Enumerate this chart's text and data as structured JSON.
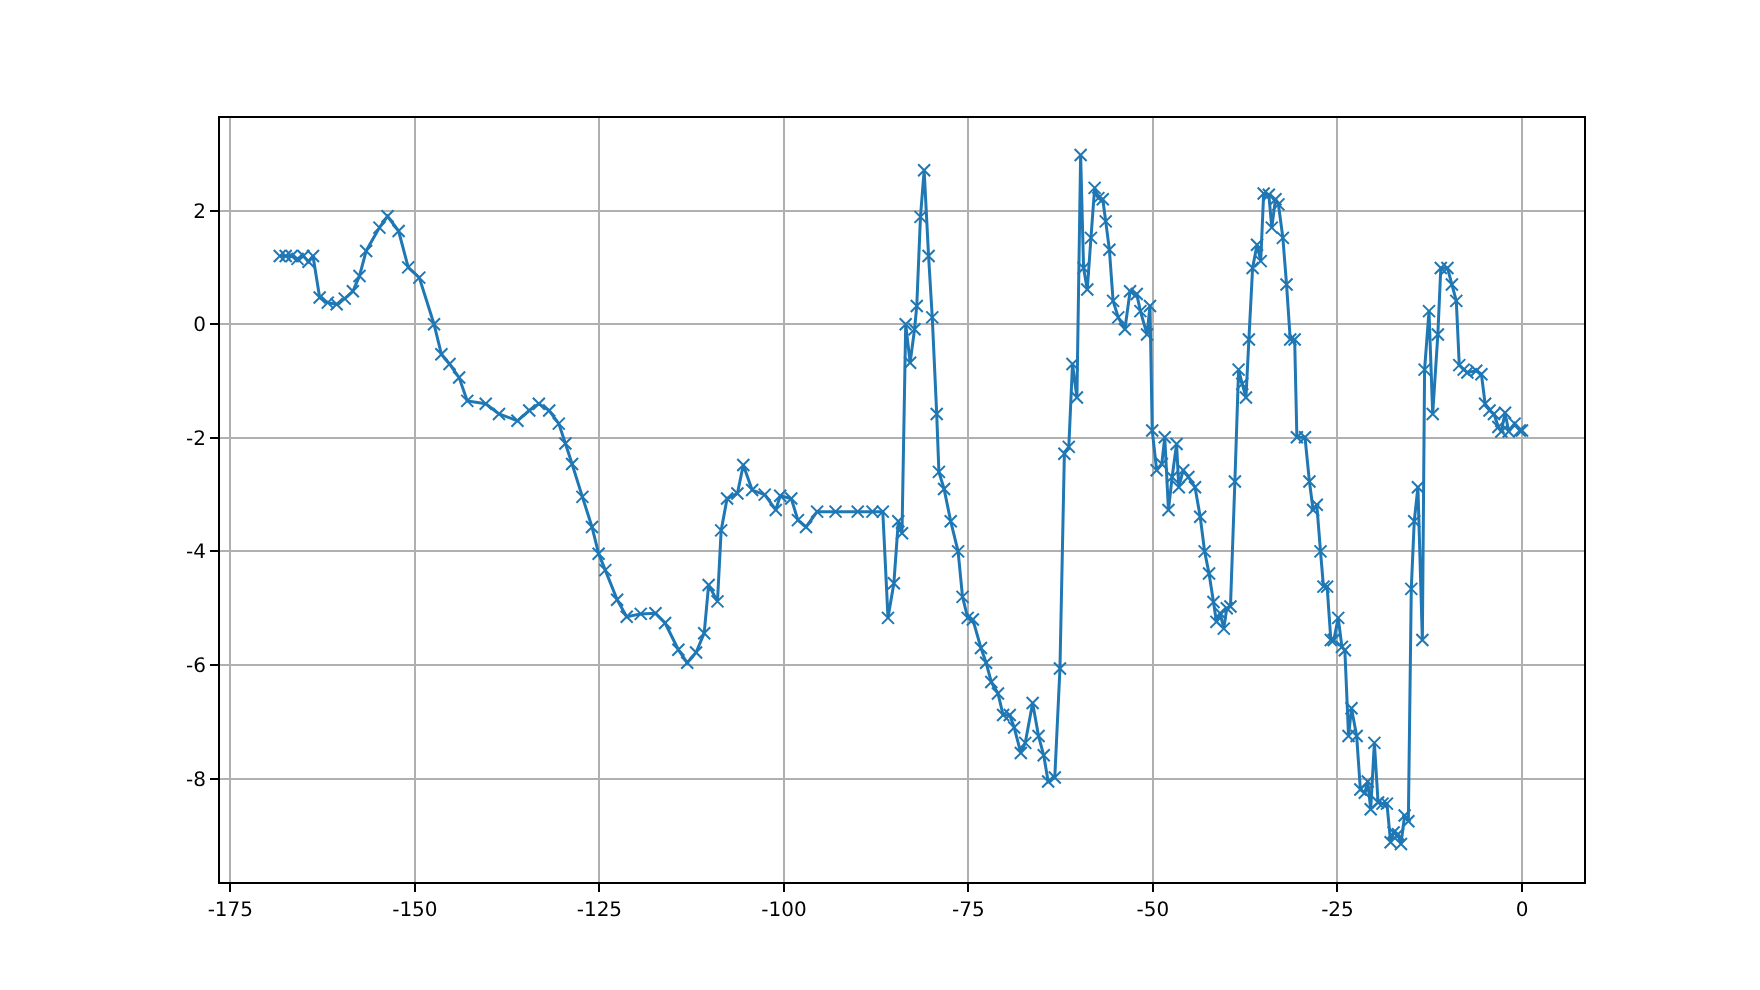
{
  "chart_data": {
    "type": "line",
    "marker": "cross",
    "line_style": "solid",
    "grid": true,
    "xlim": [
      -176.4,
      8.4
    ],
    "ylim": [
      -9.82,
      3.63
    ],
    "xticks": [
      -175,
      -150,
      -125,
      -100,
      -75,
      -50,
      -25,
      0
    ],
    "yticks": [
      -8,
      -6,
      -4,
      -2,
      0,
      2
    ],
    "x": [
      -168.3,
      -167.5,
      -166.7,
      -165.9,
      -165.1,
      -164.4,
      -163.8,
      -162.9,
      -161.8,
      -160.6,
      -159.5,
      -158.4,
      -157.5,
      -156.6,
      -154.8,
      -153.7,
      -152.2,
      -150.9,
      -149.4,
      -147.4,
      -146.4,
      -145.3,
      -144.0,
      -142.9,
      -140.4,
      -138.6,
      -136.1,
      -134.5,
      -133.2,
      -131.8,
      -130.5,
      -129.6,
      -128.7,
      -127.3,
      -126.0,
      -125.1,
      -124.2,
      -122.6,
      -121.3,
      -119.4,
      -117.4,
      -116.1,
      -114.3,
      -113.1,
      -111.9,
      -110.8,
      -110.2,
      -109.0,
      -108.5,
      -107.7,
      -106.3,
      -105.5,
      -104.3,
      -102.6,
      -101.1,
      -100.5,
      -99.0,
      -98.1,
      -97.0,
      -95.5,
      -93.0,
      -90.0,
      -88.0,
      -86.6,
      -85.9,
      -85.1,
      -84.5,
      -84.0,
      -83.5,
      -82.9,
      -82.3,
      -82.0,
      -81.5,
      -81.0,
      -80.4,
      -79.9,
      -79.3,
      -79.0,
      -78.3,
      -77.4,
      -76.4,
      -75.8,
      -75.1,
      -74.4,
      -73.3,
      -72.6,
      -71.9,
      -71.0,
      -70.3,
      -69.4,
      -68.8,
      -67.9,
      -67.3,
      -66.3,
      -65.5,
      -64.8,
      -64.2,
      -63.3,
      -62.6,
      -62.0,
      -61.4,
      -60.9,
      -60.3,
      -59.8,
      -59.4,
      -58.9,
      -58.4,
      -57.9,
      -57.4,
      -56.8,
      -56.4,
      -55.9,
      -55.4,
      -54.7,
      -53.8,
      -53.1,
      -52.2,
      -51.7,
      -50.8,
      -50.4,
      -50.1,
      -49.5,
      -48.8,
      -48.4,
      -47.9,
      -47.4,
      -46.8,
      -46.5,
      -45.9,
      -45.2,
      -44.3,
      -43.6,
      -43.0,
      -42.4,
      -41.8,
      -41.4,
      -40.9,
      -40.4,
      -40.0,
      -39.5,
      -38.9,
      -38.4,
      -37.9,
      -37.4,
      -37.0,
      -36.5,
      -35.9,
      -35.4,
      -35.0,
      -34.3,
      -33.9,
      -33.4,
      -33.0,
      -32.4,
      -31.9,
      -31.4,
      -30.8,
      -30.5,
      -29.4,
      -28.8,
      -28.3,
      -27.8,
      -27.3,
      -26.9,
      -26.4,
      -25.9,
      -25.5,
      -24.9,
      -24.4,
      -24.0,
      -23.5,
      -23.1,
      -22.4,
      -21.9,
      -21.3,
      -20.9,
      -20.5,
      -20.0,
      -19.5,
      -18.9,
      -18.3,
      -17.8,
      -17.4,
      -16.8,
      -16.4,
      -15.9,
      -15.4,
      -15.0,
      -14.6,
      -14.1,
      -13.5,
      -13.2,
      -12.6,
      -12.1,
      -11.4,
      -11.0,
      -10.1,
      -9.5,
      -8.9,
      -8.5,
      -7.9,
      -7.4,
      -6.2,
      -5.5,
      -5.0,
      -4.4,
      -3.8,
      -3.2,
      -2.8,
      -2.3,
      -1.8,
      -1.0,
      -0.3,
      0
    ],
    "series": [
      {
        "color": "#1f77b4",
        "values": [
          1.2,
          1.2,
          1.2,
          1.15,
          1.2,
          1.1,
          1.2,
          0.47,
          0.38,
          0.35,
          0.45,
          0.58,
          0.85,
          1.29,
          1.7,
          1.9,
          1.64,
          1.0,
          0.82,
          0.0,
          -0.53,
          -0.7,
          -0.94,
          -1.35,
          -1.4,
          -1.58,
          -1.7,
          -1.52,
          -1.4,
          -1.52,
          -1.75,
          -2.1,
          -2.46,
          -3.04,
          -3.57,
          -4.04,
          -4.33,
          -4.85,
          -5.15,
          -5.1,
          -5.09,
          -5.26,
          -5.73,
          -5.96,
          -5.78,
          -5.44,
          -4.59,
          -4.88,
          -3.63,
          -3.07,
          -2.98,
          -2.48,
          -2.92,
          -3.0,
          -3.27,
          -3.02,
          -3.07,
          -3.45,
          -3.57,
          -3.3,
          -3.3,
          -3.3,
          -3.3,
          -3.3,
          -5.17,
          -4.56,
          -3.47,
          -3.68,
          0.0,
          -0.68,
          -0.09,
          0.32,
          1.89,
          2.71,
          1.2,
          0.12,
          -1.58,
          -2.6,
          -2.9,
          -3.47,
          -4.0,
          -4.8,
          -5.17,
          -5.2,
          -5.7,
          -5.96,
          -6.3,
          -6.5,
          -6.88,
          -6.88,
          -7.1,
          -7.55,
          -7.37,
          -6.67,
          -7.25,
          -7.59,
          -8.05,
          -7.98,
          -6.06,
          -2.28,
          -2.16,
          -0.7,
          -1.29,
          2.98,
          0.99,
          0.61,
          1.52,
          2.4,
          2.22,
          2.2,
          1.81,
          1.31,
          0.41,
          0.12,
          -0.09,
          0.58,
          0.53,
          0.23,
          -0.18,
          0.32,
          -1.87,
          -2.57,
          -2.46,
          -1.99,
          -3.27,
          -2.69,
          -2.11,
          -2.87,
          -2.57,
          -2.69,
          -2.87,
          -3.39,
          -4.0,
          -4.39,
          -4.89,
          -5.24,
          -5.09,
          -5.36,
          -5.0,
          -4.97,
          -2.77,
          -0.8,
          -1.05,
          -1.29,
          -0.27,
          0.99,
          1.4,
          1.11,
          2.3,
          2.28,
          1.7,
          2.2,
          2.11,
          1.52,
          0.7,
          -0.27,
          -0.27,
          -1.99,
          -1.99,
          -2.77,
          -3.27,
          -3.18,
          -4.0,
          -4.62,
          -4.62,
          -5.56,
          -5.56,
          -5.17,
          -5.68,
          -5.74,
          -7.25,
          -6.76,
          -7.25,
          -8.19,
          -8.25,
          -8.05,
          -8.54,
          -7.37,
          -8.42,
          -8.44,
          -8.44,
          -9.12,
          -8.95,
          -8.98,
          -9.15,
          -8.65,
          -8.75,
          -4.66,
          -3.47,
          -2.87,
          -5.56,
          -0.8,
          0.23,
          -1.58,
          -0.18,
          0.99,
          0.99,
          0.7,
          0.41,
          -0.72,
          -0.8,
          -0.85,
          -0.82,
          -0.88,
          -1.4,
          -1.52,
          -1.58,
          -1.81,
          -1.89,
          -1.56,
          -1.89,
          -1.75,
          -1.87,
          -1.87
        ]
      }
    ]
  }
}
